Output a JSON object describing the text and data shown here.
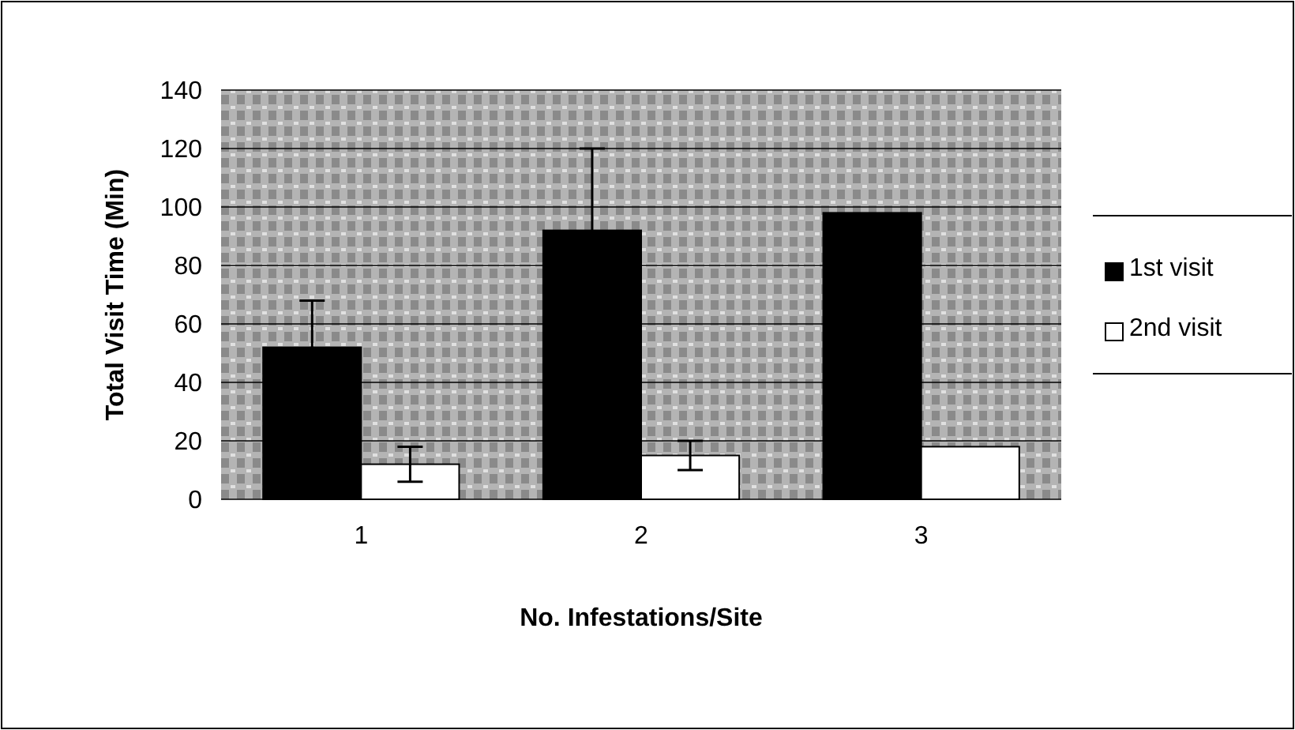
{
  "chart_data": {
    "type": "bar",
    "xlabel": "No. Infestations/Site",
    "ylabel": "Total Visit Time (Min)",
    "categories": [
      "1",
      "2",
      "3"
    ],
    "series": [
      {
        "name": "1st visit",
        "color": "#000000",
        "values": [
          52,
          92,
          98
        ],
        "errors": [
          16,
          28,
          null
        ]
      },
      {
        "name": "2nd visit",
        "color": "#ffffff",
        "values": [
          12,
          15,
          18
        ],
        "errors": [
          6,
          5,
          null
        ]
      }
    ],
    "ylim": [
      0,
      140
    ],
    "yticks": [
      0,
      20,
      40,
      60,
      80,
      100,
      120,
      140
    ],
    "grid": "y",
    "legend": "right"
  }
}
